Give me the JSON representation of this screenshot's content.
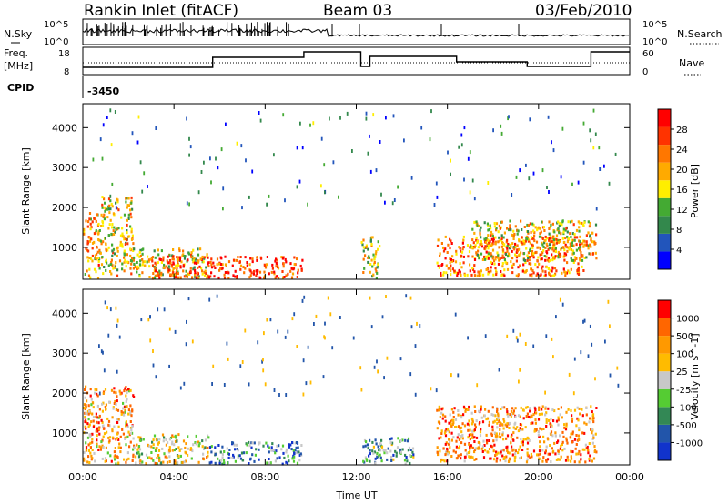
{
  "header": {
    "title": "Rankin Inlet (fitACF)",
    "beam": "Beam 03",
    "date": "03/Feb/2010"
  },
  "top_panels": {
    "nsky_label": "N.Sky",
    "nsky_ticks": [
      "10^5",
      "10^0"
    ],
    "nsearch_label": "N.Search",
    "nsearch_ticks": [
      "10^5",
      "10^0"
    ],
    "freq_label_1": "Freq.",
    "freq_label_2": "[MHz]",
    "freq_ticks": [
      "18",
      "8"
    ],
    "nave_label": "Nave",
    "nave_ticks": [
      "60",
      "0"
    ],
    "cpid_label": "CPID",
    "cpid_value": "-3450"
  },
  "x_axis": {
    "label": "Time UT",
    "ticks": [
      "00:00",
      "04:00",
      "08:00",
      "12:00",
      "16:00",
      "20:00",
      "00:00"
    ]
  },
  "colors": {
    "power": [
      "#0000ff",
      "#2255bb",
      "#33884c",
      "#44aa33",
      "#ffee00",
      "#ffaa00",
      "#ff7700",
      "#ff3300",
      "#ff0000"
    ],
    "velocity": [
      "#1133cc",
      "#2255aa",
      "#338855",
      "#55cc33",
      "#c8c8c8",
      "#ffbb00",
      "#ff9900",
      "#ff6600",
      "#ff0000"
    ]
  },
  "chart_data": [
    {
      "type": "heatmap",
      "name": "power",
      "ylabel": "Slant Range [km]",
      "yticks": [
        "1000",
        "2000",
        "3000",
        "4000"
      ],
      "ylim": [
        200,
        4600
      ],
      "xlim": [
        0,
        24
      ],
      "colorbar_label": "Power [dB]",
      "colorbar_ticks": [
        "28",
        "24",
        "20",
        "16",
        "12",
        "8",
        "4"
      ],
      "regions": [
        {
          "t0": 0.0,
          "t1": 0.8,
          "r0": 250,
          "r1": 1900,
          "intensity": 0.65
        },
        {
          "t0": 0.8,
          "t1": 2.2,
          "r0": 300,
          "r1": 2300,
          "intensity": 0.55
        },
        {
          "t0": 2.2,
          "t1": 5.5,
          "r0": 250,
          "r1": 1000,
          "intensity": 0.55
        },
        {
          "t0": 3.0,
          "t1": 9.6,
          "r0": 250,
          "r1": 800,
          "intensity": 0.9
        },
        {
          "t0": 12.2,
          "t1": 13.0,
          "r0": 250,
          "r1": 1300,
          "intensity": 0.5
        },
        {
          "t0": 15.5,
          "t1": 22.0,
          "r0": 300,
          "r1": 1300,
          "intensity": 0.75
        },
        {
          "t0": 17.0,
          "t1": 22.5,
          "r0": 700,
          "r1": 1700,
          "intensity": 0.55
        }
      ]
    },
    {
      "type": "heatmap",
      "name": "velocity",
      "ylabel": "Slant Range [km]",
      "yticks": [
        "1000",
        "2000",
        "3000",
        "4000"
      ],
      "ylim": [
        200,
        4600
      ],
      "xlim": [
        0,
        24
      ],
      "colorbar_label": "Velocity [m s^-1]",
      "colorbar_ticks": [
        "1000",
        "500",
        "100",
        "25",
        "-25",
        "-100",
        "-500",
        "-1000"
      ],
      "regions": [
        {
          "t0": 0.0,
          "t1": 2.2,
          "r0": 250,
          "r1": 2200,
          "v": 0.7
        },
        {
          "t0": 2.2,
          "t1": 5.5,
          "r0": 250,
          "r1": 1000,
          "v": 0.55
        },
        {
          "t0": 5.5,
          "t1": 9.6,
          "r0": 250,
          "r1": 800,
          "v": 0.25
        },
        {
          "t0": 12.2,
          "t1": 14.5,
          "r0": 250,
          "r1": 900,
          "v": 0.3
        },
        {
          "t0": 15.5,
          "t1": 22.5,
          "r0": 300,
          "r1": 1700,
          "v": 0.75
        }
      ]
    }
  ]
}
